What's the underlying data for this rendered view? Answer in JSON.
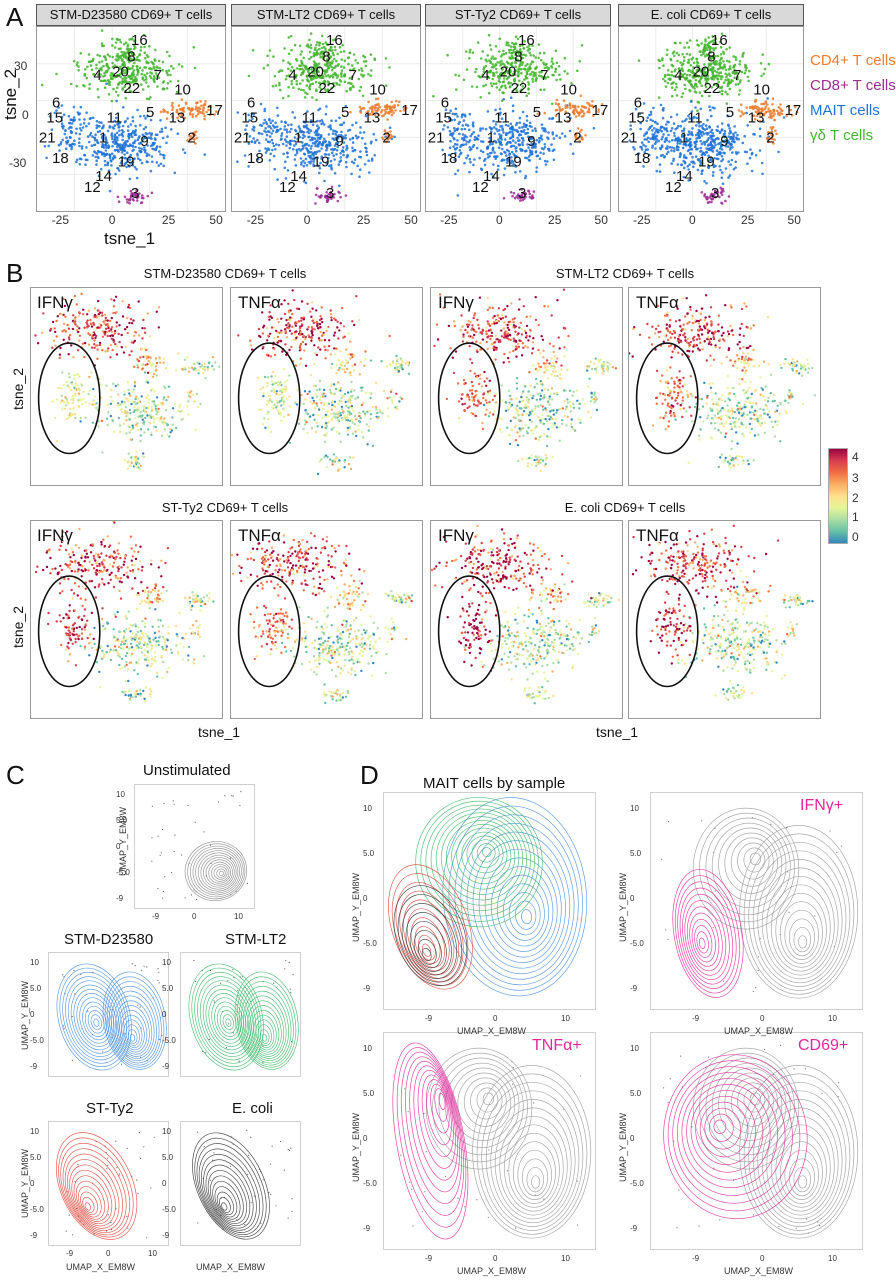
{
  "panel_letters": [
    "A",
    "B",
    "C",
    "D"
  ],
  "panelA": {
    "facets": [
      "STM-D23580 CD69+ T cells",
      "STM-LT2 CD69+ T cells",
      "ST-Ty2 CD69+ T cells",
      "E. coli CD69+ T cells"
    ],
    "xlabel": "tsne_1",
    "ylabel": "tsne_2",
    "xticks": [
      "-25",
      "0",
      "25",
      "50"
    ],
    "yticks": [
      "30",
      "0",
      "-30"
    ],
    "legend": [
      {
        "label": "CD4+ T cells",
        "color": "#ec7c30"
      },
      {
        "label": "CD8+ T cells",
        "color": "#9b2a93"
      },
      {
        "label": "MAIT cells",
        "color": "#1f73d6"
      },
      {
        "label": "γδ T cells",
        "color": "#43b52e"
      }
    ],
    "cluster_labels": [
      "16",
      "8",
      "4",
      "20",
      "7",
      "10",
      "22",
      "6",
      "15",
      "11",
      "5",
      "13",
      "17",
      "21",
      "1",
      "9",
      "2",
      "18",
      "19",
      "14",
      "12",
      "3"
    ]
  },
  "panelB": {
    "groups": [
      "STM-D23580 CD69+ T cells",
      "STM-LT2 CD69+ T cells",
      "ST-Ty2 CD69+ T cells",
      "E. coli CD69+ T cells"
    ],
    "genes": [
      "IFNγ",
      "TNFα"
    ],
    "xlabel": "tsne_1",
    "ylabel": "tsne_2",
    "colorbar_ticks": [
      "4",
      "3",
      "2",
      "1",
      "0"
    ],
    "colorbar_colors": [
      "#9e0142",
      "#d53e4f",
      "#f46d43",
      "#fdae61",
      "#fee08b",
      "#e6f598",
      "#abdda4",
      "#66c2a5",
      "#3288bd"
    ]
  },
  "panelC": {
    "titles": [
      "Unstimulated",
      "STM-D23580",
      "STM-LT2",
      "ST-Ty2",
      "E. coli"
    ],
    "colors": [
      "#888888",
      "#4a90d9",
      "#3dba6a",
      "#e0443a",
      "#333333"
    ],
    "xlabel": "UMAP_X_EM8W",
    "ylabel": "UMAP_Y_EM8W",
    "xticks": [
      "-9",
      "0",
      "10"
    ],
    "yticks": [
      "10",
      "5.0",
      "0",
      "-5.0",
      "-9"
    ]
  },
  "panelD": {
    "title": "MAIT cells by sample",
    "markers": [
      "IFNγ+",
      "TNFα+",
      "CD69+"
    ],
    "highlight_color": "#e0289b",
    "xlabel": "UMAP_X_EM8W",
    "ylabel": "UMAP_Y_EM8W",
    "xticks": [
      "-9",
      "0",
      "10"
    ],
    "yticks": [
      "10",
      "5.0",
      "0",
      "-5.0",
      "-9"
    ]
  }
}
